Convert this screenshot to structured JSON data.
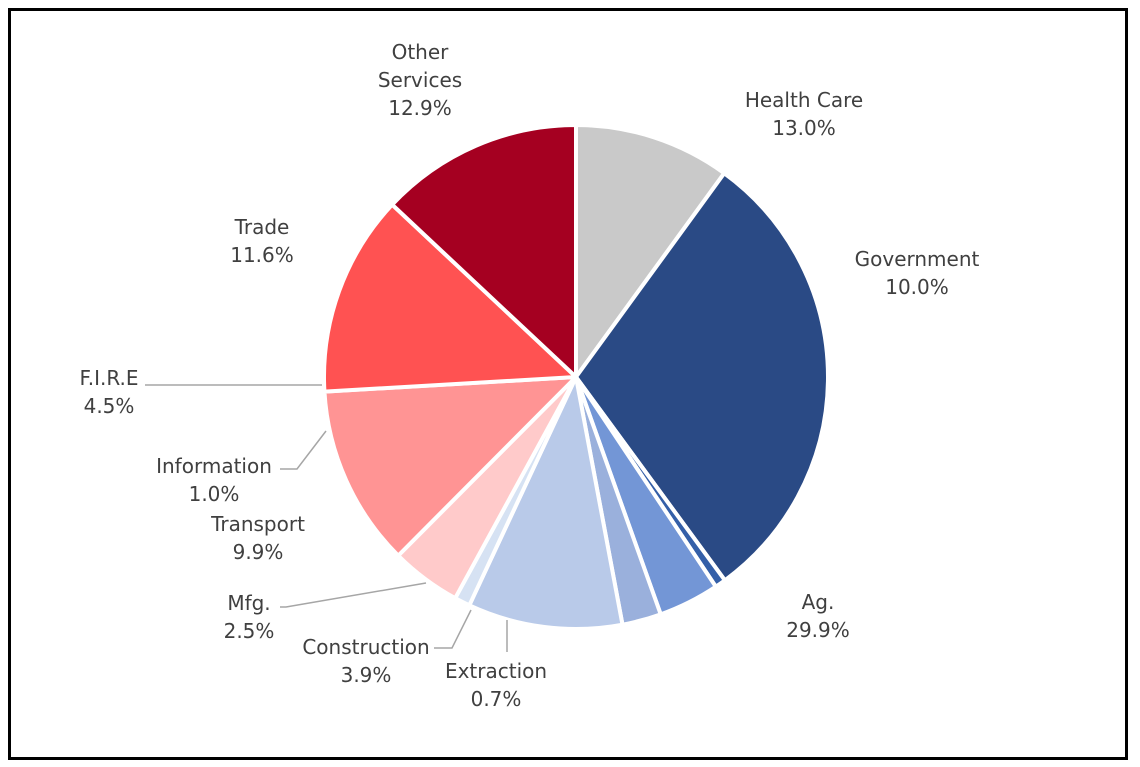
{
  "chart_data": {
    "type": "pie",
    "title": "",
    "start_angle_deg": 0,
    "direction": "clockwise",
    "slices": [
      {
        "label": "Government",
        "value": 10.0,
        "value_label": "10.0%",
        "color": "#c9c9c9"
      },
      {
        "label": "Ag.",
        "value": 29.9,
        "value_label": "29.9%",
        "color": "#2a4a85"
      },
      {
        "label": "Extraction",
        "value": 0.7,
        "value_label": "0.7%",
        "color": "#345fa8"
      },
      {
        "label": "Construction",
        "value": 3.9,
        "value_label": "3.9%",
        "color": "#7396d6"
      },
      {
        "label": "Mfg.",
        "value": 2.5,
        "value_label": "2.5%",
        "color": "#9ab0dc"
      },
      {
        "label": "Transport",
        "value": 9.9,
        "value_label": "9.9%",
        "color": "#b9cae9"
      },
      {
        "label": "Information",
        "value": 1.0,
        "value_label": "1.0%",
        "color": "#d6e2f3"
      },
      {
        "label": "F.I.R.E",
        "value": 4.5,
        "value_label": "4.5%",
        "color": "#ffcaca"
      },
      {
        "label": "Trade",
        "value": 11.6,
        "value_label": "11.6%",
        "color": "#ff9494"
      },
      {
        "label": "Other Services",
        "value": 12.9,
        "value_label": "12.9%",
        "color": "#ff5252"
      },
      {
        "label": "Health Care",
        "value": 13.0,
        "value_label": "13.0%",
        "color": "#a50021"
      }
    ],
    "leader_line_color": "#a6a6a6",
    "label_color": "#404040"
  }
}
